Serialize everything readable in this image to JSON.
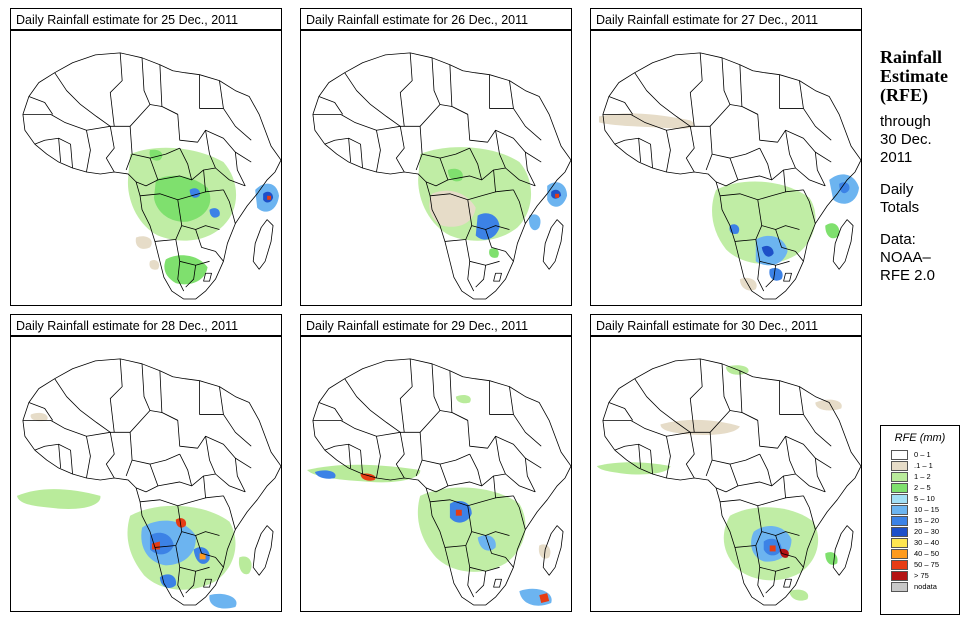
{
  "panels": [
    {
      "title": "Daily Rainfall estimate for  25 Dec., 2011"
    },
    {
      "title": "Daily Rainfall estimate for  26 Dec., 2011"
    },
    {
      "title": "Daily Rainfall estimate for  27 Dec., 2011"
    },
    {
      "title": "Daily Rainfall estimate for  28 Dec., 2011"
    },
    {
      "title": "Daily Rainfall estimate for  29 Dec., 2011"
    },
    {
      "title": "Daily Rainfall estimate for  30 Dec., 2011"
    }
  ],
  "side": {
    "title1": "Rainfall",
    "title2": "Estimate",
    "title3": "(RFE)",
    "through": "through",
    "date": "30 Dec.",
    "year": "2011",
    "daily": "Daily",
    "totals": "Totals",
    "data": "Data:",
    "source1": "NOAA–",
    "source2": "RFE 2.0"
  },
  "legend": {
    "title": "RFE (mm)",
    "items": [
      {
        "label": "0 – 1",
        "color": "#ffffff"
      },
      {
        "label": ".1 – 1",
        "color": "#e6dcc8"
      },
      {
        "label": "1 – 2",
        "color": "#b9eb9b"
      },
      {
        "label": "2 – 5",
        "color": "#7fe06e"
      },
      {
        "label": "5 – 10",
        "color": "#a3dff5"
      },
      {
        "label": "10 – 15",
        "color": "#6cb4f0"
      },
      {
        "label": "15 – 20",
        "color": "#3c82e6"
      },
      {
        "label": "20 – 30",
        "color": "#1e50c8"
      },
      {
        "label": "30 – 40",
        "color": "#ffe650"
      },
      {
        "label": "40 – 50",
        "color": "#ff9b1e"
      },
      {
        "label": "50 – 75",
        "color": "#e63c14"
      },
      {
        "label": "> 75",
        "color": "#b41414"
      },
      {
        "label": "nodata",
        "color": "#c8c8c8"
      }
    ]
  }
}
